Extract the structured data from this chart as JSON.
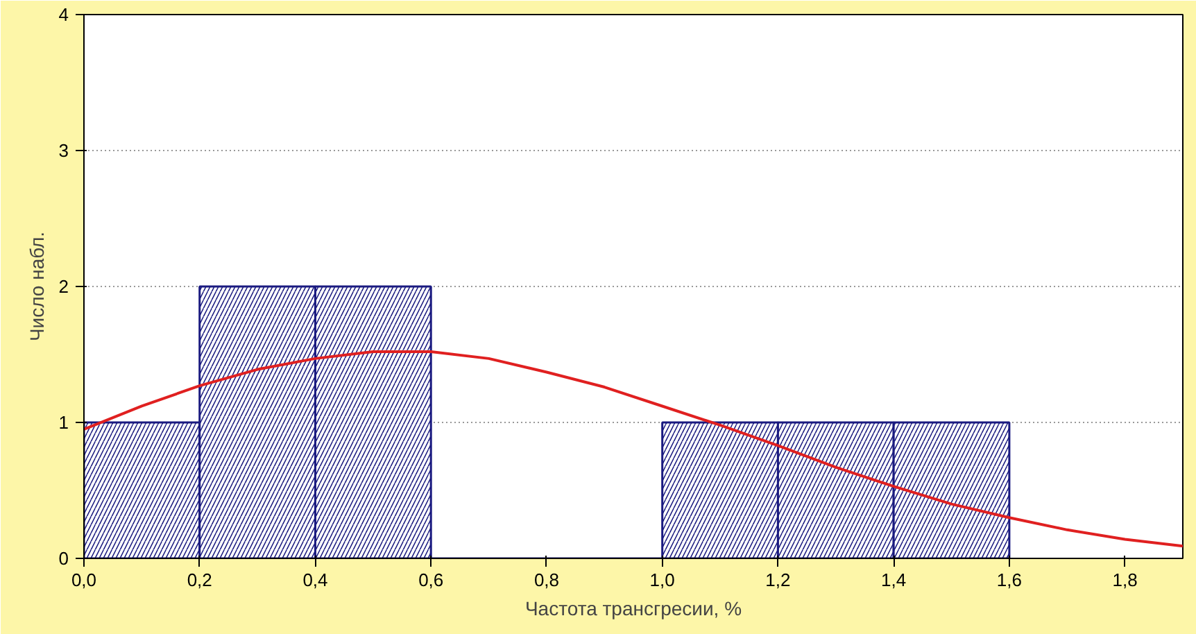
{
  "chart_data": {
    "type": "histogram",
    "xlabel": "Частота трансгресии, %",
    "ylabel": "Число набл.",
    "bins": [
      0,
      0.2,
      0.4,
      0.6,
      0.8,
      1.0,
      1.2,
      1.4,
      1.6
    ],
    "values": [
      1,
      2,
      2,
      0,
      0,
      1,
      1,
      1
    ],
    "color": "#1a1a80",
    "series": [
      {
        "type": "line",
        "color": "#e02020",
        "x": [
          0,
          0.1,
          0.2,
          0.3,
          0.4,
          0.5,
          0.6,
          0.7,
          0.8,
          0.9,
          1.0,
          1.1,
          1.2,
          1.3,
          1.4,
          1.5,
          1.6,
          1.7,
          1.8,
          1.9
        ],
        "values": [
          0.95,
          1.12,
          1.27,
          1.39,
          1.47,
          1.52,
          1.52,
          1.47,
          1.37,
          1.26,
          1.12,
          0.98,
          0.83,
          0.67,
          0.53,
          0.4,
          0.3,
          0.21,
          0.14,
          0.09
        ]
      }
    ],
    "xlim": [
      0,
      1.9
    ],
    "ylim": [
      0,
      4
    ],
    "xticks": [
      {
        "value": 0,
        "label": "0,0"
      },
      {
        "value": 0.2,
        "label": "0,2"
      },
      {
        "value": 0.4,
        "label": "0,4"
      },
      {
        "value": 0.6,
        "label": "0,6"
      },
      {
        "value": 0.8,
        "label": "0,8"
      },
      {
        "value": 1.0,
        "label": "1,0"
      },
      {
        "value": 1.2,
        "label": "1,2"
      },
      {
        "value": 1.4,
        "label": "1,4"
      },
      {
        "value": 1.6,
        "label": "1,6"
      },
      {
        "value": 1.8,
        "label": "1,8"
      }
    ],
    "yticks": [
      0,
      1,
      2,
      3,
      4
    ],
    "grid": "y"
  }
}
